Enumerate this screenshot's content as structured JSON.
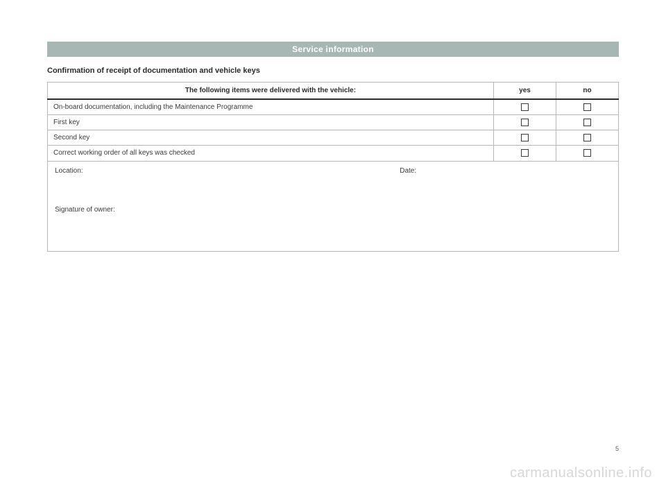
{
  "header": {
    "title": "Service information"
  },
  "subheading": "Confirmation of receipt of documentation and vehicle keys",
  "table": {
    "columns": {
      "item": "The following items were delivered with the vehicle:",
      "yes": "yes",
      "no": "no"
    },
    "rows": [
      {
        "label": "On-board documentation, including the Maintenance Programme"
      },
      {
        "label": "First key"
      },
      {
        "label": "Second key"
      },
      {
        "label": "Correct working order of all keys was checked"
      }
    ],
    "signature": {
      "location_label": "Location:",
      "date_label": "Date:",
      "owner_label": "Signature of owner:"
    }
  },
  "page_number": "5",
  "watermark": "carmanualsonline.info",
  "colors": {
    "header_bg": "#a7b8b4",
    "header_text": "#ffffff",
    "border": "#b7b7b7",
    "thick_border": "#2b2b2b",
    "text": "#3a3a3a",
    "page_num": "#5a5a5a",
    "watermark": "#d7d7d7",
    "background": "#ffffff"
  }
}
